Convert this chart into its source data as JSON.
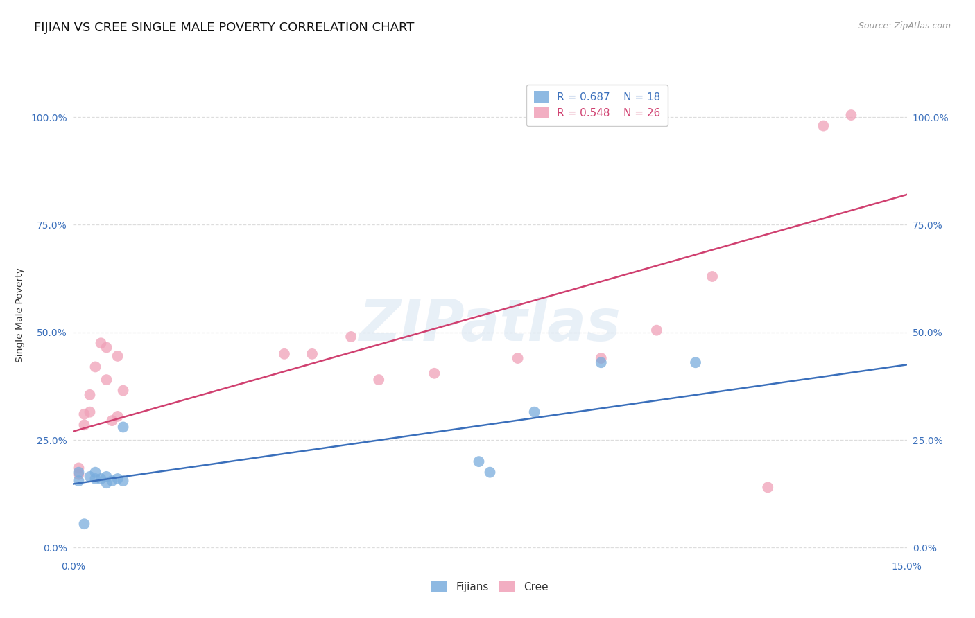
{
  "title": "FIJIAN VS CREE SINGLE MALE POVERTY CORRELATION CHART",
  "source": "Source: ZipAtlas.com",
  "ylabel": "Single Male Poverty",
  "ytick_labels": [
    "0.0%",
    "25.0%",
    "50.0%",
    "75.0%",
    "100.0%"
  ],
  "ytick_values": [
    0.0,
    0.25,
    0.5,
    0.75,
    1.0
  ],
  "xmin": 0.0,
  "xmax": 0.15,
  "ymin": -0.02,
  "ymax": 1.1,
  "fijian_color": "#7aaddd",
  "cree_color": "#f0a0b8",
  "fijian_line_color": "#3a6fbb",
  "cree_line_color": "#d04070",
  "legend_fijian_R": "0.687",
  "legend_fijian_N": "18",
  "legend_cree_R": "0.548",
  "legend_cree_N": "26",
  "watermark": "ZIPatlas",
  "fijian_x": [
    0.001,
    0.001,
    0.002,
    0.003,
    0.004,
    0.004,
    0.005,
    0.006,
    0.006,
    0.007,
    0.008,
    0.009,
    0.009,
    0.073,
    0.075,
    0.083,
    0.095,
    0.112
  ],
  "fijian_y": [
    0.175,
    0.155,
    0.055,
    0.165,
    0.16,
    0.175,
    0.16,
    0.15,
    0.165,
    0.155,
    0.16,
    0.28,
    0.155,
    0.2,
    0.175,
    0.315,
    0.43,
    0.43
  ],
  "cree_x": [
    0.001,
    0.001,
    0.002,
    0.002,
    0.003,
    0.003,
    0.004,
    0.005,
    0.006,
    0.006,
    0.007,
    0.008,
    0.008,
    0.009,
    0.038,
    0.043,
    0.05,
    0.055,
    0.065,
    0.08,
    0.095,
    0.105,
    0.115,
    0.125,
    0.135,
    0.14
  ],
  "cree_y": [
    0.17,
    0.185,
    0.285,
    0.31,
    0.355,
    0.315,
    0.42,
    0.475,
    0.465,
    0.39,
    0.295,
    0.445,
    0.305,
    0.365,
    0.45,
    0.45,
    0.49,
    0.39,
    0.405,
    0.44,
    0.44,
    0.505,
    0.63,
    0.14,
    0.98,
    1.005
  ],
  "fijian_line_x0": 0.0,
  "fijian_line_y0": 0.148,
  "fijian_line_x1": 0.15,
  "fijian_line_y1": 0.425,
  "cree_line_x0": 0.0,
  "cree_line_y0": 0.27,
  "cree_line_x1": 0.15,
  "cree_line_y1": 0.82,
  "background_color": "#ffffff",
  "grid_color": "#dddddd",
  "title_fontsize": 13,
  "axis_label_fontsize": 10,
  "tick_fontsize": 10,
  "legend_fontsize": 11,
  "marker_size": 130
}
